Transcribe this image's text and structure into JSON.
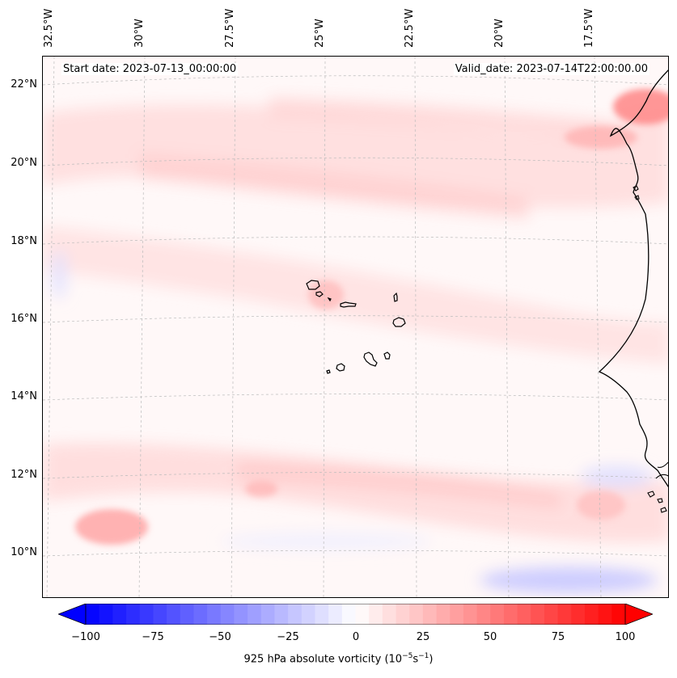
{
  "map": {
    "start_date": "Start date: 2023-07-13_00:00:00",
    "valid_date": "Valid_date: 2023-07-14T22:00:00.00",
    "lon_labels": [
      "32.5°W",
      "30°W",
      "27.5°W",
      "25°W",
      "22.5°W",
      "20°W",
      "17.5°W"
    ],
    "lat_labels": [
      "22°N",
      "20°N",
      "18°N",
      "16°N",
      "14°N",
      "12°N",
      "10°N"
    ],
    "features": [
      "Cape Verde islands",
      "West African coastline"
    ],
    "colors": {
      "positive": "#ff0000",
      "negative": "#0000ff",
      "background": "#fff8f8",
      "coastline": "#000000",
      "gridline": "#bbbbbb"
    }
  },
  "colorbar": {
    "min": -100,
    "max": 100,
    "ticks": [
      "−100",
      "−75",
      "−50",
      "−25",
      "0",
      "25",
      "50",
      "75",
      "100"
    ],
    "label": "925 hPa absolute vorticity (10",
    "label_exp1": "−5",
    "label_mid": "s",
    "label_exp2": "−1",
    "label_end": ")",
    "colormap": "bwr"
  }
}
